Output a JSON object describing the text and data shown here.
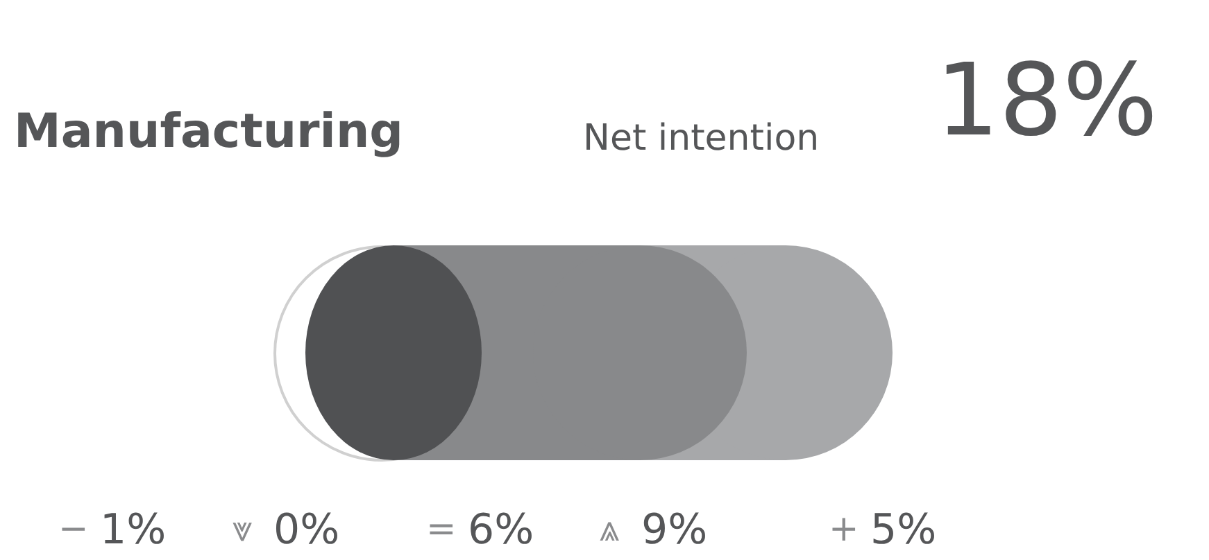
{
  "chart_data": {
    "type": "other",
    "title": "Manufacturing",
    "subtitle": "Net intention",
    "annotations": [
      "18%"
    ],
    "categories": [
      "−",
      "⩔",
      "=",
      "⩓",
      "+"
    ],
    "values": [
      1,
      0,
      6,
      9,
      5
    ],
    "value_labels": [
      "1%",
      "0%",
      "6%",
      "9%",
      "5%"
    ]
  }
}
